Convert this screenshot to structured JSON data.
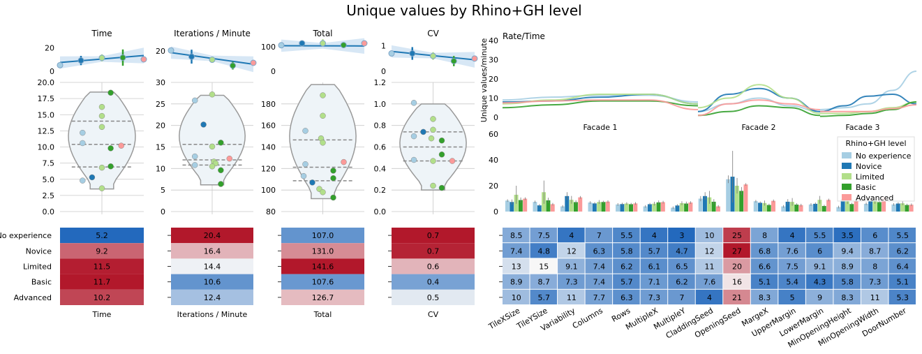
{
  "figure": {
    "title": "Unique values by Rhino+GH level"
  },
  "levels": [
    "No experience",
    "Novice",
    "Limited",
    "Basic",
    "Advanced"
  ],
  "colors": {
    "No experience": "#a6cee3",
    "Novice": "#1f78b4",
    "Limited": "#b2df8a",
    "Basic": "#33a02c",
    "Advanced": "#fb9a99"
  },
  "legend": {
    "title": "Rhino+GH level",
    "placement": "right"
  },
  "chart_data": [
    {
      "type": "line",
      "title": "Time",
      "ylim": [
        0,
        24
      ],
      "yticks": [
        "0",
        "20"
      ],
      "x": [
        0,
        1,
        2,
        3,
        4
      ],
      "values": [
        5.2,
        9.2,
        11.5,
        11.7,
        10.2
      ],
      "fit": [
        7.5,
        13.5
      ],
      "err": [
        0,
        4,
        3,
        7,
        0
      ]
    },
    {
      "type": "line",
      "title": "Iterations / Minute",
      "ylim": [
        7,
        25
      ],
      "yticks": [
        "20"
      ],
      "x": [
        0,
        1,
        2,
        3,
        4
      ],
      "values": [
        20.4,
        16.4,
        14.4,
        10.6,
        12.4
      ],
      "fit": [
        19.0,
        11.5
      ],
      "err": [
        0,
        4.5,
        2,
        2.5,
        0
      ]
    },
    {
      "type": "line",
      "title": "Total",
      "ylim": [
        0,
        115
      ],
      "yticks": [
        "0",
        "100"
      ],
      "x": [
        0,
        1,
        2,
        3,
        4
      ],
      "values": [
        107.0,
        131.0,
        141.6,
        107.6,
        126.7
      ],
      "fit": [
        105,
        104
      ],
      "err": [
        0,
        8,
        10,
        5,
        0
      ]
    },
    {
      "type": "line",
      "title": "CV",
      "ylim": [
        0,
        1.1
      ],
      "yticks": [
        "0",
        "1"
      ],
      "x": [
        0,
        1,
        2,
        3,
        4
      ],
      "values": [
        0.7,
        0.7,
        0.6,
        0.4,
        0.5
      ],
      "fit": [
        0.78,
        0.45
      ],
      "err": [
        0,
        0.25,
        0.15,
        0.2,
        0
      ]
    },
    {
      "type": "scatter",
      "title": "Time",
      "ylim": [
        0,
        20
      ],
      "yticks": [
        "0.0",
        "2.5",
        "5.0",
        "7.5",
        "10.0",
        "12.5",
        "15.0",
        "17.5",
        "20.0"
      ],
      "quartiles": [
        6.9,
        10.4,
        14.0
      ],
      "violin_range": [
        3.5,
        18.5
      ],
      "points": [
        {
          "level": "No experience",
          "y": 12.2,
          "dx": -0.55
        },
        {
          "level": "No experience",
          "y": 10.6,
          "dx": -0.55
        },
        {
          "level": "No experience",
          "y": 4.8,
          "dx": -0.55
        },
        {
          "level": "Novice",
          "y": 5.3,
          "dx": -0.28
        },
        {
          "level": "Limited",
          "y": 16.2,
          "dx": 0.0
        },
        {
          "level": "Limited",
          "y": 14.8,
          "dx": 0.0
        },
        {
          "level": "Limited",
          "y": 13.1,
          "dx": 0.0
        },
        {
          "level": "Limited",
          "y": 6.8,
          "dx": 0.0
        },
        {
          "level": "Limited",
          "y": 3.6,
          "dx": 0.0
        },
        {
          "level": "Basic",
          "y": 18.4,
          "dx": 0.25
        },
        {
          "level": "Basic",
          "y": 9.8,
          "dx": 0.25
        },
        {
          "level": "Basic",
          "y": 7.0,
          "dx": 0.25
        },
        {
          "level": "Advanced",
          "y": 10.2,
          "dx": 0.55
        }
      ]
    },
    {
      "type": "scatter",
      "title": "Iterations / Minute",
      "ylim": [
        0,
        30
      ],
      "yticks": [
        "0",
        "5",
        "10",
        "15",
        "20",
        "25",
        "30"
      ],
      "quartiles": [
        10.8,
        12.0,
        15.6
      ],
      "violin_range": [
        6.2,
        27
      ],
      "points": [
        {
          "level": "No experience",
          "y": 25.8,
          "dx": -0.5
        },
        {
          "level": "No experience",
          "y": 12.8,
          "dx": -0.5
        },
        {
          "level": "No experience",
          "y": 10.8,
          "dx": -0.5
        },
        {
          "level": "Novice",
          "y": 20.2,
          "dx": -0.25
        },
        {
          "level": "Limited",
          "y": 27.2,
          "dx": 0.0
        },
        {
          "level": "Limited",
          "y": 15.1,
          "dx": 0.0
        },
        {
          "level": "Limited",
          "y": 11.6,
          "dx": 0.05
        },
        {
          "level": "Limited",
          "y": 11.2,
          "dx": 0.1
        },
        {
          "level": "Limited",
          "y": 10.5,
          "dx": 0.0
        },
        {
          "level": "Basic",
          "y": 16.0,
          "dx": 0.25
        },
        {
          "level": "Basic",
          "y": 9.6,
          "dx": 0.25
        },
        {
          "level": "Basic",
          "y": 6.4,
          "dx": 0.25
        },
        {
          "level": "Advanced",
          "y": 12.3,
          "dx": 0.5
        }
      ]
    },
    {
      "type": "scatter",
      "title": "Total",
      "ylim": [
        80,
        200
      ],
      "yticks": [
        "80",
        "100",
        "120",
        "140",
        "160",
        "180"
      ],
      "quartiles": [
        108.6,
        121.2,
        146.6
      ],
      "violin_range": [
        92,
        198
      ],
      "points": [
        {
          "level": "No experience",
          "y": 155,
          "dx": -0.5
        },
        {
          "level": "No experience",
          "y": 124,
          "dx": -0.5
        },
        {
          "level": "No experience",
          "y": 113,
          "dx": -0.55
        },
        {
          "level": "Novice",
          "y": 107,
          "dx": -0.3
        },
        {
          "level": "Limited",
          "y": 188,
          "dx": 0.0
        },
        {
          "level": "Limited",
          "y": 169,
          "dx": 0.0
        },
        {
          "level": "Limited",
          "y": 148,
          "dx": -0.05
        },
        {
          "level": "Limited",
          "y": 144,
          "dx": 0.0
        },
        {
          "level": "Limited",
          "y": 101,
          "dx": -0.1
        },
        {
          "level": "Limited",
          "y": 98,
          "dx": 0.0
        },
        {
          "level": "Basic",
          "y": 118,
          "dx": 0.3
        },
        {
          "level": "Basic",
          "y": 111,
          "dx": 0.3
        },
        {
          "level": "Basic",
          "y": 93,
          "dx": 0.3
        },
        {
          "level": "Advanced",
          "y": 126,
          "dx": 0.6
        }
      ]
    },
    {
      "type": "scatter",
      "title": "CV",
      "ylim": [
        0,
        1.2
      ],
      "yticks": [
        "0.0",
        "0.2",
        "0.4",
        "0.6",
        "0.8",
        "1.0",
        "1.2"
      ],
      "quartiles": [
        0.47,
        0.6,
        0.74
      ],
      "violin_range": [
        0.2,
        1.0
      ],
      "points": [
        {
          "level": "No experience",
          "y": 1.01,
          "dx": -0.55
        },
        {
          "level": "No experience",
          "y": 0.7,
          "dx": -0.55
        },
        {
          "level": "No experience",
          "y": 0.48,
          "dx": -0.55
        },
        {
          "level": "Novice",
          "y": 0.74,
          "dx": -0.28
        },
        {
          "level": "Limited",
          "y": 0.86,
          "dx": 0.0
        },
        {
          "level": "Limited",
          "y": 0.76,
          "dx": 0.0
        },
        {
          "level": "Limited",
          "y": 0.68,
          "dx": -0.05
        },
        {
          "level": "Limited",
          "y": 0.47,
          "dx": 0.0
        },
        {
          "level": "Limited",
          "y": 0.24,
          "dx": 0.0
        },
        {
          "level": "Basic",
          "y": 0.66,
          "dx": 0.25
        },
        {
          "level": "Basic",
          "y": 0.53,
          "dx": 0.25
        },
        {
          "level": "Basic",
          "y": 0.22,
          "dx": 0.25
        },
        {
          "level": "Advanced",
          "y": 0.47,
          "dx": 0.55
        }
      ]
    },
    {
      "type": "heatmap",
      "xlabel": "Time",
      "values": [
        5.2,
        9.2,
        11.5,
        11.7,
        10.2
      ],
      "labels": [
        "5.2",
        "9.2",
        "11.5",
        "11.7",
        "10.2"
      ],
      "range": [
        5.2,
        11.7
      ]
    },
    {
      "type": "heatmap",
      "xlabel": "Iterations / Minute",
      "values": [
        20.4,
        16.4,
        14.4,
        10.6,
        12.4
      ],
      "labels": [
        "20.4",
        "16.4",
        "14.4",
        "10.6",
        "12.4"
      ],
      "range": [
        10.6,
        20.4
      ]
    },
    {
      "type": "heatmap",
      "xlabel": "Total",
      "values": [
        107.0,
        131.0,
        141.6,
        107.6,
        126.7
      ],
      "labels": [
        "107.0",
        "131.0",
        "141.6",
        "107.6",
        "126.7"
      ],
      "range": [
        107.0,
        141.6
      ]
    },
    {
      "type": "heatmap",
      "xlabel": "CV",
      "values": [
        0.72,
        0.71,
        0.58,
        0.4,
        0.5
      ],
      "labels": [
        "0.7",
        "0.7",
        "0.6",
        "0.4",
        "0.5"
      ],
      "range": [
        0.4,
        0.72
      ]
    },
    {
      "type": "line",
      "title": "Rate/Time",
      "ylabel": "Unique values/minute",
      "ylim": [
        0,
        40
      ],
      "yticks": [
        "0",
        "10",
        "20",
        "30",
        "40"
      ],
      "segments": [
        "Facade 1",
        "Facade 2",
        "Facade 3"
      ],
      "series": [
        {
          "name": "No experience",
          "curves": [
            [
              9,
              10.5,
              11.5,
              11.5,
              8
            ],
            [
              3,
              7,
              10,
              6,
              3
            ],
            [
              4,
              5,
              7,
              14,
              24
            ]
          ]
        },
        {
          "name": "Novice",
          "curves": [
            [
              8,
              8.5,
              10.5,
              12,
              7
            ],
            [
              3,
              12,
              15,
              10,
              3
            ],
            [
              3,
              6,
              11,
              12,
              7
            ]
          ]
        },
        {
          "name": "Limited",
          "curves": [
            [
              7,
              9,
              12,
              12,
              7
            ],
            [
              5,
              10,
              17,
              10,
              2
            ],
            [
              2,
              2,
              3,
              5,
              8
            ]
          ]
        },
        {
          "name": "Basic",
          "curves": [
            [
              5,
              6.5,
              8.5,
              8.5,
              6
            ],
            [
              1,
              3,
              6,
              5,
              1
            ],
            [
              0.5,
              1,
              2,
              4,
              8
            ]
          ]
        },
        {
          "name": "Advanced",
          "curves": [
            [
              7.5,
              8.5,
              9,
              9,
              4
            ],
            [
              1,
              7,
              9,
              7,
              4
            ],
            [
              3,
              3,
              3,
              4.5,
              6.5
            ]
          ]
        }
      ]
    },
    {
      "type": "bar",
      "ylim": [
        0,
        60
      ],
      "yticks": [
        "0",
        "20",
        "40",
        "60"
      ],
      "categories": [
        "TileXSize",
        "TileYSize",
        "Variability",
        "Columns",
        "Rows",
        "MultipleX",
        "MultipleY",
        "CladdingSeed",
        "OpeningSeed",
        "MargeX",
        "UpperMargin",
        "LowerMargin",
        "MinOpeningHeight",
        "MinOpeningWidth",
        "DoorNumber"
      ],
      "series": [
        {
          "name": "No experience",
          "values": [
            8.5,
            7.5,
            4,
            7,
            5.5,
            4,
            3,
            10,
            25,
            8,
            4,
            5.5,
            3.5,
            6,
            5.5
          ],
          "err": [
            1,
            1,
            1,
            1,
            1,
            1,
            1,
            2,
            3,
            1,
            1,
            1,
            1,
            1,
            1
          ]
        },
        {
          "name": "Novice",
          "values": [
            7.4,
            4.8,
            12,
            6.3,
            5.8,
            5.7,
            4.7,
            12,
            27,
            6.8,
            7.6,
            6,
            9.4,
            8.7,
            6.2
          ],
          "err": [
            2,
            1,
            3,
            1,
            1,
            1,
            1,
            3,
            20,
            1,
            2,
            1,
            2,
            2,
            1
          ]
        },
        {
          "name": "Limited",
          "values": [
            13,
            15,
            9.1,
            7.4,
            6.2,
            6.1,
            6.5,
            11,
            20,
            6.6,
            7.5,
            9.1,
            8.9,
            8,
            6.4
          ],
          "err": [
            7,
            9,
            3,
            1.5,
            1,
            1.5,
            1.5,
            5,
            6,
            2,
            3,
            3,
            3,
            2,
            1.5
          ]
        },
        {
          "name": "Basic",
          "values": [
            8.9,
            8.7,
            7.3,
            7.4,
            5.7,
            7.1,
            6.2,
            7.6,
            16,
            5.1,
            5.4,
            4.3,
            5.8,
            7.3,
            5.1
          ],
          "err": [
            2,
            2,
            1.5,
            1,
            1,
            1.5,
            1.5,
            2,
            3,
            1,
            1,
            1,
            1,
            1.5,
            1
          ]
        },
        {
          "name": "Advanced",
          "values": [
            10,
            5.7,
            11,
            7.7,
            6.3,
            7.3,
            7,
            4,
            21,
            8.3,
            5,
            9,
            8.3,
            11,
            5.3
          ],
          "err": [
            1,
            1,
            1,
            1,
            1,
            1,
            1,
            1,
            1,
            1,
            1,
            1,
            1,
            1,
            1
          ]
        }
      ]
    },
    {
      "type": "heatmap",
      "rows": [
        "No experience",
        "Novice",
        "Limited",
        "Basic",
        "Advanced"
      ],
      "columns": [
        "TileXSize",
        "TileYSize",
        "Variability",
        "Columns",
        "Rows",
        "MultipleX",
        "MultipleY",
        "CladdingSeed",
        "OpeningSeed",
        "MargeX",
        "UpperMargin",
        "LowerMargin",
        "MinOpeningHeight",
        "MinOpeningWidth",
        "DoorNumber"
      ],
      "cells": [
        [
          "8.5",
          "7.5",
          "4",
          "7",
          "5.5",
          "4",
          "3",
          "10",
          "25",
          "8",
          "4",
          "5.5",
          "3.5",
          "6",
          "5.5"
        ],
        [
          "7.4",
          "4.8",
          "12",
          "6.3",
          "5.8",
          "5.7",
          "4.7",
          "12",
          "27",
          "6.8",
          "7.6",
          "6",
          "9.4",
          "8.7",
          "6.2"
        ],
        [
          "13",
          "15",
          "9.1",
          "7.4",
          "6.2",
          "6.1",
          "6.5",
          "11",
          "20",
          "6.6",
          "7.5",
          "9.1",
          "8.9",
          "8",
          "6.4"
        ],
        [
          "8.9",
          "8.7",
          "7.3",
          "7.4",
          "5.7",
          "7.1",
          "6.2",
          "7.6",
          "16",
          "5.1",
          "5.4",
          "4.3",
          "5.8",
          "7.3",
          "5.1"
        ],
        [
          "10",
          "5.7",
          "11",
          "7.7",
          "6.3",
          "7.3",
          "7",
          "4",
          "21",
          "8.3",
          "5",
          "9",
          "8.3",
          "11",
          "5.3"
        ]
      ],
      "range": [
        3,
        27
      ],
      "center": 15
    }
  ]
}
